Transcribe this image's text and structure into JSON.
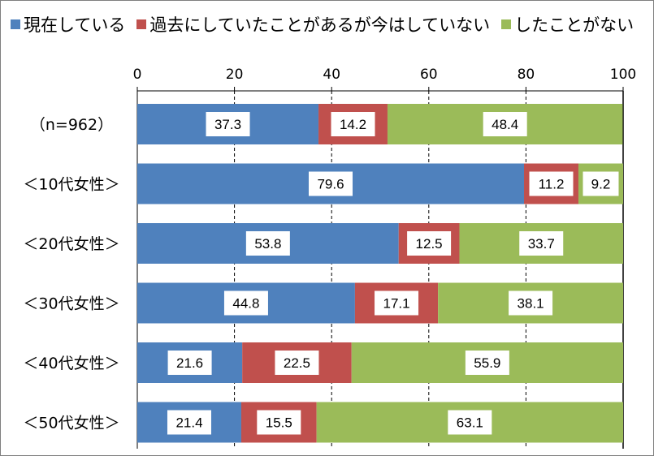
{
  "chart_data": {
    "type": "bar",
    "orientation": "horizontal",
    "stacked": true,
    "percent": true,
    "categories": [
      "（n=962）",
      "＜10代女性＞",
      "＜20代女性＞",
      "＜30代女性＞",
      "＜40代女性＞",
      "＜50代女性＞"
    ],
    "series": [
      {
        "name": "現在している",
        "color": "#4f81bd",
        "values": [
          37.3,
          79.6,
          53.8,
          44.8,
          21.6,
          21.4
        ]
      },
      {
        "name": "過去にしていたことがあるが今はしていない",
        "color": "#c0504d",
        "values": [
          14.2,
          11.2,
          12.5,
          17.1,
          22.5,
          15.5
        ]
      },
      {
        "name": "したことがない",
        "color": "#9bbb59",
        "values": [
          48.4,
          9.2,
          33.7,
          38.1,
          55.9,
          63.1
        ]
      }
    ],
    "xlim": [
      0,
      100
    ],
    "xticks": [
      "0",
      "20",
      "40",
      "60",
      "80",
      "100"
    ],
    "xaxis_position": "top",
    "grid": true,
    "legend_position": "top",
    "data_labels": true
  }
}
